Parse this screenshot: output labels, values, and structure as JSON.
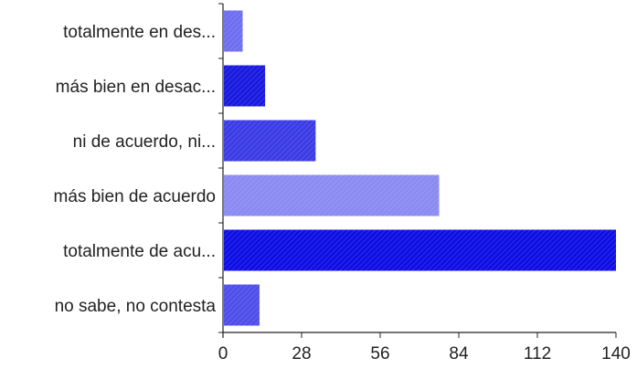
{
  "chart_data": {
    "type": "bar",
    "orientation": "horizontal",
    "categories": [
      "totalmente en des...",
      "más bien en desac...",
      "ni de acuerdo, ni...",
      "más bien de acuerdo",
      "totalmente de acu...",
      "no sabe, no contesta"
    ],
    "values": [
      7,
      15,
      33,
      77,
      140,
      13
    ],
    "xlim": [
      0,
      140
    ],
    "xticks": [
      "0",
      "28",
      "56",
      "84",
      "112",
      "140"
    ],
    "grid": false,
    "legend": "none",
    "bar_colors": [
      "#6E6EF0",
      "#1919E0",
      "#3B3BE6",
      "#8A8AF2",
      "#0E0EE4",
      "#4E4EEA"
    ],
    "axis_color": "#222222",
    "title": "",
    "xlabel": "",
    "ylabel": ""
  }
}
